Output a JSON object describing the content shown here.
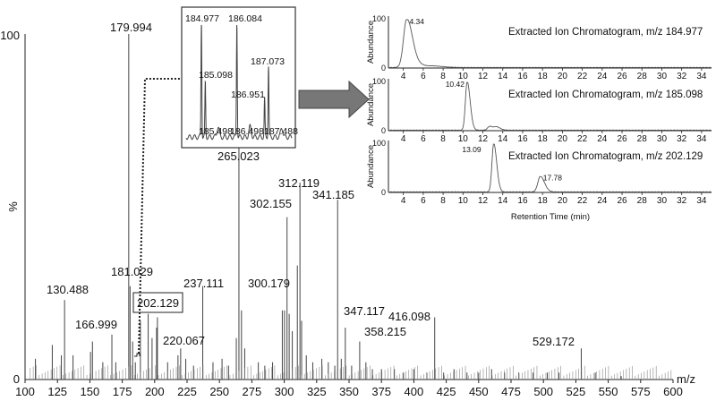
{
  "chart_data": [
    {
      "type": "bar",
      "xlabel": "m/z",
      "ylabel": "%",
      "xlim": [
        100,
        600
      ],
      "ylim": [
        0,
        100
      ],
      "y_ticks": [
        "0",
        "100"
      ],
      "x_ticks": [
        "100",
        "125",
        "150",
        "175",
        "200",
        "225",
        "250",
        "275",
        "300",
        "325",
        "350",
        "375",
        "400",
        "425",
        "450",
        "475",
        "500",
        "525",
        "550",
        "575",
        "600"
      ],
      "peaks": [
        {
          "x": 179.994,
          "y": 100,
          "label": "179.994"
        },
        {
          "x": 181.029,
          "y": 27,
          "label": "181.029"
        },
        {
          "x": 265.023,
          "y": 67,
          "label": "265.023"
        },
        {
          "x": 312.119,
          "y": 57,
          "label": "312.119"
        },
        {
          "x": 341.185,
          "y": 52,
          "label": "341.185"
        },
        {
          "x": 302.155,
          "y": 47,
          "label": "302.155"
        },
        {
          "x": 130.488,
          "y": 23,
          "label": "130.488"
        },
        {
          "x": 237.111,
          "y": 27,
          "label": "237.111"
        },
        {
          "x": 300.179,
          "y": 20,
          "label": "300.179"
        },
        {
          "x": 166.999,
          "y": 13,
          "label": "166.999"
        },
        {
          "x": 202.129,
          "y": 18,
          "label": "202.129"
        },
        {
          "x": 220.067,
          "y": 9,
          "label": "220.067"
        },
        {
          "x": 347.117,
          "y": 15,
          "label": "347.117"
        },
        {
          "x": 416.098,
          "y": 18,
          "label": "416.098"
        },
        {
          "x": 358.215,
          "y": 11,
          "label": "358.215"
        },
        {
          "x": 529.172,
          "y": 9,
          "label": "529.172"
        },
        {
          "x": 185.098,
          "y": 5,
          "label": ""
        },
        {
          "x": 310.1,
          "y": 33,
          "label": ""
        },
        {
          "x": 298.5,
          "y": 20,
          "label": ""
        },
        {
          "x": 303.8,
          "y": 19,
          "label": ""
        },
        {
          "x": 313.4,
          "y": 17,
          "label": ""
        },
        {
          "x": 306.2,
          "y": 14,
          "label": ""
        },
        {
          "x": 267.0,
          "y": 20,
          "label": ""
        },
        {
          "x": 263.0,
          "y": 12,
          "label": ""
        },
        {
          "x": 269.5,
          "y": 9,
          "label": ""
        },
        {
          "x": 195.0,
          "y": 19,
          "label": ""
        },
        {
          "x": 189.0,
          "y": 17,
          "label": ""
        },
        {
          "x": 198.0,
          "y": 12,
          "label": ""
        },
        {
          "x": 201.5,
          "y": 15,
          "label": ""
        },
        {
          "x": 183.0,
          "y": 11,
          "label": ""
        },
        {
          "x": 152.0,
          "y": 11,
          "label": ""
        },
        {
          "x": 150.5,
          "y": 8,
          "label": ""
        },
        {
          "x": 137.0,
          "y": 7,
          "label": ""
        },
        {
          "x": 128.0,
          "y": 7,
          "label": ""
        },
        {
          "x": 121.0,
          "y": 10,
          "label": ""
        },
        {
          "x": 108.0,
          "y": 6,
          "label": ""
        },
        {
          "x": 160.0,
          "y": 5,
          "label": ""
        },
        {
          "x": 170.0,
          "y": 5,
          "label": ""
        },
        {
          "x": 210.0,
          "y": 5,
          "label": ""
        },
        {
          "x": 218.0,
          "y": 7,
          "label": ""
        },
        {
          "x": 224.0,
          "y": 6,
          "label": ""
        },
        {
          "x": 230.0,
          "y": 4,
          "label": ""
        },
        {
          "x": 245.0,
          "y": 5,
          "label": ""
        },
        {
          "x": 252.0,
          "y": 6,
          "label": ""
        },
        {
          "x": 257.0,
          "y": 4,
          "label": ""
        },
        {
          "x": 280.0,
          "y": 5,
          "label": ""
        },
        {
          "x": 285.0,
          "y": 4,
          "label": ""
        },
        {
          "x": 291.0,
          "y": 5,
          "label": ""
        },
        {
          "x": 317.0,
          "y": 7,
          "label": ""
        },
        {
          "x": 322.0,
          "y": 5,
          "label": ""
        },
        {
          "x": 329.0,
          "y": 6,
          "label": ""
        },
        {
          "x": 334.0,
          "y": 5,
          "label": ""
        },
        {
          "x": 339.0,
          "y": 4,
          "label": ""
        },
        {
          "x": 344.0,
          "y": 6,
          "label": ""
        },
        {
          "x": 352.0,
          "y": 4,
          "label": ""
        },
        {
          "x": 363.0,
          "y": 5,
          "label": ""
        },
        {
          "x": 368.0,
          "y": 3,
          "label": ""
        },
        {
          "x": 375.0,
          "y": 3,
          "label": ""
        },
        {
          "x": 385.0,
          "y": 3,
          "label": ""
        },
        {
          "x": 392.0,
          "y": 2,
          "label": ""
        },
        {
          "x": 400.0,
          "y": 3,
          "label": ""
        },
        {
          "x": 410.0,
          "y": 2,
          "label": ""
        },
        {
          "x": 423.0,
          "y": 2,
          "label": ""
        },
        {
          "x": 431.0,
          "y": 3,
          "label": ""
        },
        {
          "x": 441.0,
          "y": 2,
          "label": ""
        },
        {
          "x": 450.0,
          "y": 2,
          "label": ""
        },
        {
          "x": 460.0,
          "y": 3,
          "label": ""
        },
        {
          "x": 470.0,
          "y": 2,
          "label": ""
        },
        {
          "x": 481.0,
          "y": 2,
          "label": ""
        },
        {
          "x": 492.0,
          "y": 2,
          "label": ""
        },
        {
          "x": 503.0,
          "y": 2,
          "label": ""
        },
        {
          "x": 512.0,
          "y": 2,
          "label": ""
        },
        {
          "x": 540.0,
          "y": 2,
          "label": ""
        },
        {
          "x": 560.0,
          "y": 1,
          "label": ""
        }
      ],
      "highlight_box_label": "202.129"
    },
    {
      "type": "line",
      "inset": "zoom",
      "xlim": [
        184.5,
        187.8
      ],
      "ylim": [
        0,
        100
      ],
      "peak_labels": [
        {
          "x": 184.977,
          "y": 100,
          "label": "184.977"
        },
        {
          "x": 185.098,
          "y": 47,
          "label": "185.098"
        },
        {
          "x": 185.498,
          "y": 9,
          "label": "185.498"
        },
        {
          "x": 186.084,
          "y": 100,
          "label": "186.084"
        },
        {
          "x": 186.498,
          "y": 9,
          "label": "186.498"
        },
        {
          "x": 186.951,
          "y": 33,
          "label": "186.951"
        },
        {
          "x": 187.073,
          "y": 62,
          "label": "187.073"
        },
        {
          "x": 187.488,
          "y": 8,
          "label": "187.488"
        }
      ]
    },
    {
      "type": "line",
      "panels": [
        {
          "title": "Extracted Ion Chromatogram, m/z 184.977",
          "ylabel": "Abundance",
          "y_ticks": [
            "0",
            "100"
          ],
          "ylim": [
            0,
            100
          ],
          "peaks": [
            {
              "rt": 4.34,
              "h": 100,
              "w": 0.45,
              "label": "4.34"
            },
            {
              "rt": 5.2,
              "h": 8,
              "w": 0.6,
              "label": ""
            },
            {
              "rt": 7.0,
              "h": 3,
              "w": 0.8,
              "label": ""
            }
          ]
        },
        {
          "title": "Extracted Ion Chromatogram, m/z 185.098",
          "ylabel": "Abundance",
          "y_ticks": [
            "0",
            "100"
          ],
          "ylim": [
            0,
            100
          ],
          "peaks": [
            {
              "rt": 10.42,
              "h": 100,
              "w": 0.25,
              "label": "10.42"
            },
            {
              "rt": 12.7,
              "h": 8,
              "w": 0.3,
              "label": ""
            },
            {
              "rt": 13.4,
              "h": 6,
              "w": 0.3,
              "label": ""
            }
          ]
        },
        {
          "title": "Extracted Ion Chromatogram, m/z 202.129",
          "ylabel": "Abundance",
          "y_ticks": [
            "0",
            "100"
          ],
          "ylim": [
            0,
            100
          ],
          "peaks": [
            {
              "rt": 13.09,
              "h": 100,
              "w": 0.25,
              "label": "13.09"
            },
            {
              "rt": 17.78,
              "h": 32,
              "w": 0.35,
              "label": "17.78"
            }
          ]
        }
      ],
      "x_ticks": [
        "4",
        "6",
        "8",
        "10",
        "12",
        "14",
        "16",
        "18",
        "20",
        "22",
        "24",
        "26",
        "28",
        "30",
        "32",
        "34"
      ],
      "xlim": [
        2.5,
        35
      ],
      "xlabel": "Retention Time (min)"
    }
  ]
}
